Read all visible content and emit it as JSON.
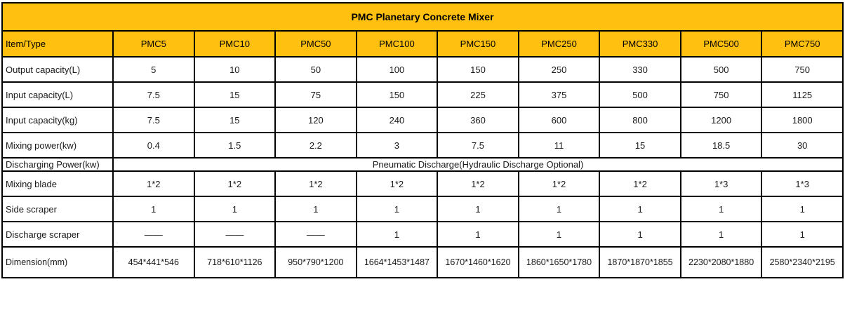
{
  "table": {
    "title": "PMC Planetary Concrete Mixer",
    "corner_header": "Item/Type",
    "columns": [
      "PMC5",
      "PMC10",
      "PMC50",
      "PMC100",
      "PMC150",
      "PMC250",
      "PMC330",
      "PMC500",
      "PMC750"
    ],
    "rows": [
      {
        "label": "Output capacity(L)",
        "values": [
          "5",
          "10",
          "50",
          "100",
          "150",
          "250",
          "330",
          "500",
          "750"
        ]
      },
      {
        "label": "Input capacity(L)",
        "values": [
          "7.5",
          "15",
          "75",
          "150",
          "225",
          "375",
          "500",
          "750",
          "1125"
        ]
      },
      {
        "label": "Input capacity(kg)",
        "values": [
          "7.5",
          "15",
          "120",
          "240",
          "360",
          "600",
          "800",
          "1200",
          "1800"
        ]
      },
      {
        "label": "Mixing power(kw)",
        "values": [
          "0.4",
          "1.5",
          "2.2",
          "3",
          "7.5",
          "11",
          "15",
          "18.5",
          "30"
        ]
      },
      {
        "label": "Discharging Power(kw)",
        "span": "Pneumatic Discharge(Hydraulic Discharge Optional)"
      },
      {
        "label": "Mixing blade",
        "values": [
          "1*2",
          "1*2",
          "1*2",
          "1*2",
          "1*2",
          "1*2",
          "1*2",
          "1*3",
          "1*3"
        ]
      },
      {
        "label": "Side scraper",
        "values": [
          "1",
          "1",
          "1",
          "1",
          "1",
          "1",
          "1",
          "1",
          "1"
        ]
      },
      {
        "label": "Discharge scraper",
        "values": [
          "——",
          "——",
          "——",
          "1",
          "1",
          "1",
          "1",
          "1",
          "1"
        ]
      },
      {
        "label": "Dimension(mm)",
        "values": [
          "454*441*546",
          "718*610*1126",
          "950*790*1200",
          "1664*1453*1487",
          "1670*1460*1620",
          "1860*1650*1780",
          "1870*1870*1855",
          "2230*2080*1880",
          "2580*2340*2195"
        ]
      }
    ],
    "colors": {
      "header_bg": "#FFC010",
      "border": "#000000",
      "body_bg": "#FFFFFF",
      "text": "#1A1A1A"
    }
  }
}
